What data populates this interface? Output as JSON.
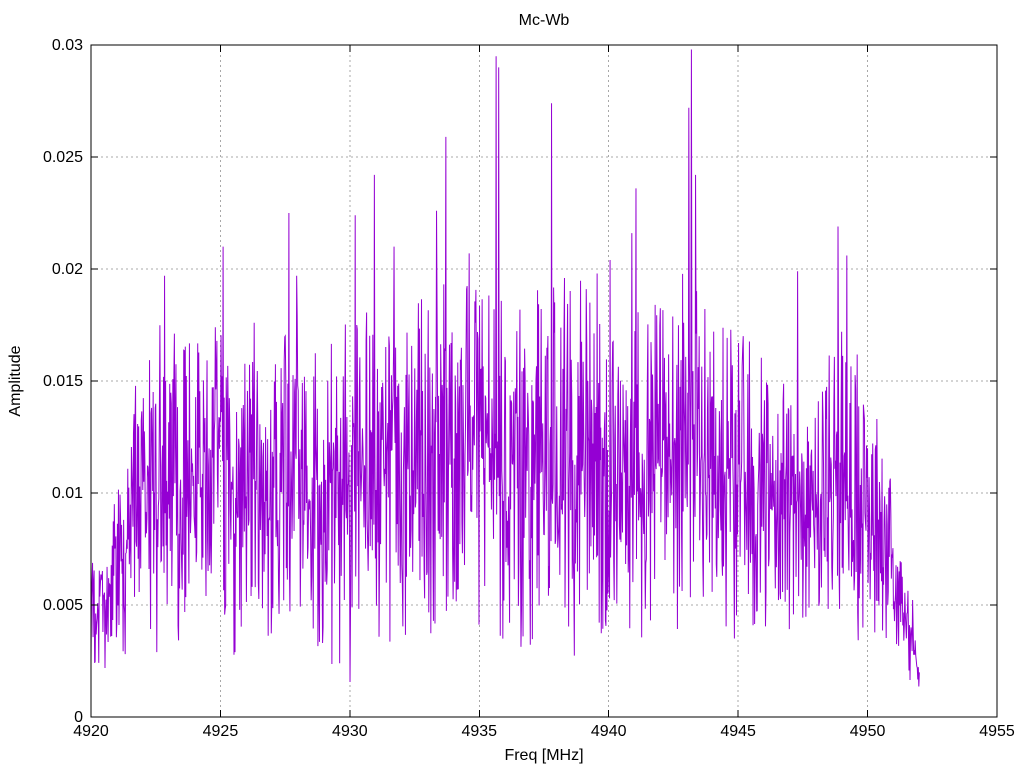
{
  "chart_data": {
    "type": "line",
    "title": "Mc-Wb",
    "xlabel": "Freq [MHz]",
    "ylabel": "Amplitude",
    "xlim": [
      4920,
      4955
    ],
    "ylim": [
      0,
      0.03
    ],
    "xticks": [
      4920,
      4925,
      4930,
      4935,
      4940,
      4945,
      4950,
      4955
    ],
    "xtick_labels": [
      "4920",
      "4925",
      "4930",
      "4935",
      "4940",
      "4945",
      "4950",
      "4955"
    ],
    "yticks": [
      0,
      0.005,
      0.01,
      0.015,
      0.02,
      0.025,
      0.03
    ],
    "ytick_labels": [
      "0",
      "0.005",
      "0.01",
      "0.015",
      "0.02",
      "0.025",
      "0.03"
    ],
    "grid": true,
    "grid_style": "dotted",
    "legend": "none",
    "line_color": "#9400d3",
    "grid_color": "#a8a8a8",
    "border_color": "#000000",
    "series": [
      {
        "name": "Mc-Wb",
        "x_start": 4920.0,
        "x_end": 4952.0,
        "n_points": 1600,
        "seed": 1789,
        "envelope": [
          [
            4920.0,
            0.0008,
            0.009
          ],
          [
            4920.6,
            0.0015,
            0.0065
          ],
          [
            4921.2,
            0.002,
            0.0125
          ],
          [
            4922.0,
            0.003,
            0.016
          ],
          [
            4922.8,
            0.0015,
            0.0178
          ],
          [
            4923.6,
            0.0025,
            0.0165
          ],
          [
            4924.4,
            0.003,
            0.0172
          ],
          [
            4925.2,
            0.002,
            0.017
          ],
          [
            4926.0,
            0.0022,
            0.0158
          ],
          [
            4927.0,
            0.0025,
            0.016
          ],
          [
            4928.0,
            0.002,
            0.018
          ],
          [
            4929.0,
            0.002,
            0.0162
          ],
          [
            4930.0,
            0.0012,
            0.0178
          ],
          [
            4931.0,
            0.002,
            0.0182
          ],
          [
            4932.0,
            0.002,
            0.0175
          ],
          [
            4933.0,
            0.0028,
            0.019
          ],
          [
            4934.0,
            0.002,
            0.0195
          ],
          [
            4935.0,
            0.003,
            0.019
          ],
          [
            4936.0,
            0.002,
            0.0185
          ],
          [
            4937.0,
            0.0022,
            0.019
          ],
          [
            4938.0,
            0.0012,
            0.0192
          ],
          [
            4939.0,
            0.002,
            0.0195
          ],
          [
            4940.0,
            0.0022,
            0.0165
          ],
          [
            4941.0,
            0.002,
            0.018
          ],
          [
            4942.0,
            0.0028,
            0.0185
          ],
          [
            4943.0,
            0.002,
            0.02
          ],
          [
            4944.0,
            0.0022,
            0.0175
          ],
          [
            4945.0,
            0.0028,
            0.0172
          ],
          [
            4946.0,
            0.0022,
            0.0162
          ],
          [
            4947.0,
            0.002,
            0.0155
          ],
          [
            4948.0,
            0.0022,
            0.015
          ],
          [
            4949.0,
            0.002,
            0.0172
          ],
          [
            4950.0,
            0.002,
            0.0155
          ],
          [
            4950.6,
            0.0018,
            0.0125
          ],
          [
            4951.2,
            0.001,
            0.0092
          ],
          [
            4951.7,
            0.0005,
            0.0062
          ],
          [
            4952.0,
            0.0002,
            0.0025
          ]
        ],
        "peaks": [
          [
            4922.85,
            0.0197
          ],
          [
            4924.8,
            0.0174
          ],
          [
            4925.1,
            0.021
          ],
          [
            4926.3,
            0.0176
          ],
          [
            4927.65,
            0.0225
          ],
          [
            4927.95,
            0.0197
          ],
          [
            4930.2,
            0.0224
          ],
          [
            4930.95,
            0.0242
          ],
          [
            4931.7,
            0.021
          ],
          [
            4933.35,
            0.0226
          ],
          [
            4933.7,
            0.0259
          ],
          [
            4934.6,
            0.0207
          ],
          [
            4935.65,
            0.0295
          ],
          [
            4935.75,
            0.029
          ],
          [
            4937.8,
            0.0274
          ],
          [
            4938.3,
            0.0196
          ],
          [
            4939.55,
            0.0198
          ],
          [
            4940.05,
            0.0204
          ],
          [
            4940.9,
            0.0216
          ],
          [
            4941.05,
            0.0236
          ],
          [
            4943.1,
            0.0272
          ],
          [
            4943.2,
            0.0298
          ],
          [
            4943.35,
            0.0242
          ],
          [
            4947.3,
            0.0199
          ],
          [
            4948.85,
            0.0219
          ],
          [
            4949.2,
            0.0206
          ]
        ]
      }
    ]
  }
}
